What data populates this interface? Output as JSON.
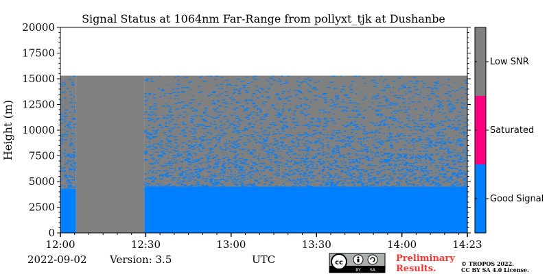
{
  "chart_data": {
    "type": "heatmap",
    "title": "Signal Status at 1064nm Far-Range from pollyxt_tjk at Dushanbe",
    "ylabel": "Height (m)",
    "xlabel": "UTC",
    "xlim": [
      "12:00",
      "14:23"
    ],
    "ylim": [
      0,
      20000
    ],
    "x_ticks": [
      "12:00",
      "12:30",
      "13:00",
      "13:30",
      "14:00",
      "14:23"
    ],
    "y_ticks": [
      0,
      2500,
      5000,
      7500,
      10000,
      12500,
      15000,
      17500,
      20000
    ],
    "data_top_height": 15300,
    "regions": [
      {
        "start": "12:00",
        "end": "12:05.5",
        "good_signal_top": 4300,
        "status_above": "mixed Good Signal / Low SNR"
      },
      {
        "start": "12:05.5",
        "end": "12:29.5",
        "status": "Low SNR"
      },
      {
        "start": "12:29.5",
        "end": "14:23",
        "good_signal_top": 4500,
        "status_above": "mixed Good Signal / Low SNR"
      }
    ],
    "colorbar": [
      {
        "label": "Good Signal",
        "color": "#0080ff"
      },
      {
        "label": "Saturated",
        "color": "#ff0080"
      },
      {
        "label": "Low SNR",
        "color": "#808080"
      }
    ]
  },
  "footer": {
    "date": "2022-09-02",
    "version": "Version: 3.5",
    "utc": "UTC",
    "preliminary_line1": "Preliminary",
    "preliminary_line2": "Results.",
    "copyright_line1": "© TROPOS 2022.",
    "copyright_line2": "CC BY SA 4.0 License.",
    "license_badge": {
      "cc": "cc",
      "by": "BY",
      "sa": "SA"
    }
  },
  "colors": {
    "good": "#0080ff",
    "saturated": "#ff0080",
    "low_snr": "#808080"
  }
}
